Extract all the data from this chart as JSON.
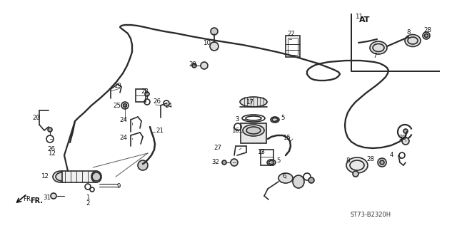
{
  "bg_color": "#ffffff",
  "fig_width": 6.4,
  "fig_height": 3.2,
  "dpi": 100,
  "diagram_color": "#2a2a2a",
  "line_width": 1.2,
  "part_code": "ST73-B2320H",
  "fr_label": "FR."
}
